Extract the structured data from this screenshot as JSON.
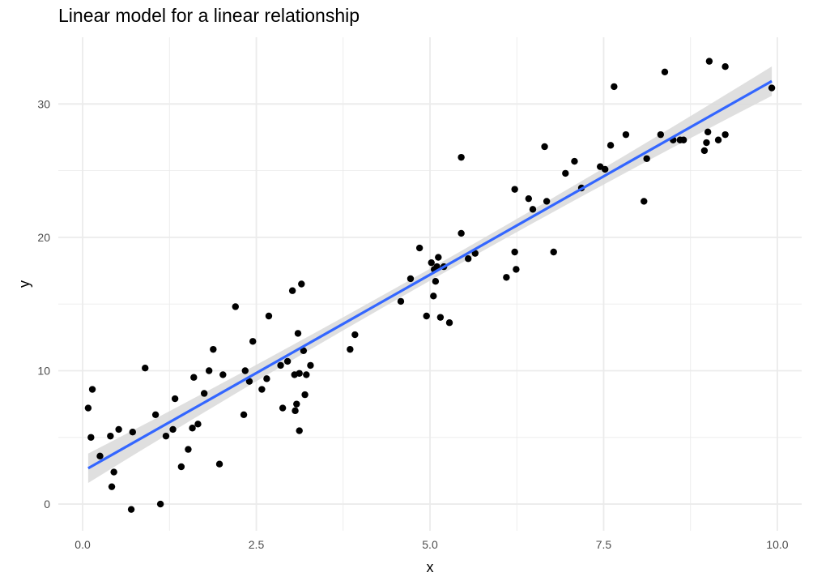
{
  "chart_data": {
    "type": "scatter",
    "title": "Linear model for a linear relationship",
    "xlabel": "x",
    "ylabel": "y",
    "xlim": [
      -0.35,
      10.35
    ],
    "ylim": [
      -2.0,
      35.0
    ],
    "x_ticks": [
      0.0,
      2.5,
      5.0,
      7.5,
      10.0
    ],
    "x_tick_labels": [
      "0.0",
      "2.5",
      "5.0",
      "7.5",
      "10.0"
    ],
    "y_ticks": [
      0,
      10,
      20,
      30
    ],
    "y_tick_labels": [
      "0",
      "10",
      "20",
      "30"
    ],
    "grid": true,
    "legend": "none",
    "colors": {
      "points": "#000000",
      "fit_line": "#3366ff",
      "confidence_band": "#d9d9d9",
      "grid": "#ebebeb"
    },
    "points": [
      [
        0.08,
        7.2
      ],
      [
        0.14,
        8.6
      ],
      [
        0.12,
        5.0
      ],
      [
        0.25,
        3.6
      ],
      [
        0.4,
        5.1
      ],
      [
        0.45,
        2.4
      ],
      [
        0.42,
        1.3
      ],
      [
        0.52,
        5.6
      ],
      [
        0.7,
        -0.4
      ],
      [
        0.72,
        5.4
      ],
      [
        0.9,
        10.2
      ],
      [
        1.05,
        6.7
      ],
      [
        1.12,
        0.0
      ],
      [
        1.2,
        5.1
      ],
      [
        1.3,
        5.6
      ],
      [
        1.33,
        7.9
      ],
      [
        1.42,
        2.8
      ],
      [
        1.52,
        4.1
      ],
      [
        1.58,
        5.7
      ],
      [
        1.6,
        9.5
      ],
      [
        1.66,
        6.0
      ],
      [
        1.75,
        8.3
      ],
      [
        1.82,
        10.0
      ],
      [
        1.88,
        11.6
      ],
      [
        1.97,
        3.0
      ],
      [
        2.02,
        9.7
      ],
      [
        2.2,
        14.8
      ],
      [
        2.32,
        6.7
      ],
      [
        2.34,
        10.0
      ],
      [
        2.4,
        9.2
      ],
      [
        2.45,
        12.2
      ],
      [
        2.58,
        8.6
      ],
      [
        2.65,
        9.4
      ],
      [
        2.68,
        14.1
      ],
      [
        2.85,
        10.4
      ],
      [
        2.88,
        7.2
      ],
      [
        2.95,
        10.7
      ],
      [
        3.02,
        16.0
      ],
      [
        3.05,
        9.7
      ],
      [
        3.06,
        7.0
      ],
      [
        3.08,
        7.5
      ],
      [
        3.1,
        12.8
      ],
      [
        3.12,
        9.8
      ],
      [
        3.12,
        5.5
      ],
      [
        3.15,
        16.5
      ],
      [
        3.18,
        11.5
      ],
      [
        3.2,
        8.2
      ],
      [
        3.22,
        9.7
      ],
      [
        3.28,
        10.4
      ],
      [
        3.85,
        11.6
      ],
      [
        3.92,
        12.7
      ],
      [
        4.58,
        15.2
      ],
      [
        4.72,
        16.9
      ],
      [
        4.85,
        19.2
      ],
      [
        4.95,
        14.1
      ],
      [
        5.02,
        18.1
      ],
      [
        5.05,
        15.6
      ],
      [
        5.06,
        17.6
      ],
      [
        5.08,
        16.7
      ],
      [
        5.1,
        17.8
      ],
      [
        5.12,
        18.5
      ],
      [
        5.15,
        14.0
      ],
      [
        5.2,
        17.8
      ],
      [
        5.28,
        13.6
      ],
      [
        5.45,
        26.0
      ],
      [
        5.45,
        20.3
      ],
      [
        5.55,
        18.4
      ],
      [
        5.65,
        18.8
      ],
      [
        6.1,
        17.0
      ],
      [
        6.22,
        23.6
      ],
      [
        6.22,
        18.9
      ],
      [
        6.24,
        17.6
      ],
      [
        6.42,
        22.9
      ],
      [
        6.48,
        22.1
      ],
      [
        6.65,
        26.8
      ],
      [
        6.68,
        22.7
      ],
      [
        6.78,
        18.9
      ],
      [
        6.95,
        24.8
      ],
      [
        7.08,
        25.7
      ],
      [
        7.18,
        23.7
      ],
      [
        7.45,
        25.3
      ],
      [
        7.52,
        25.1
      ],
      [
        7.6,
        26.9
      ],
      [
        7.65,
        31.3
      ],
      [
        7.82,
        27.7
      ],
      [
        8.08,
        22.7
      ],
      [
        8.12,
        25.9
      ],
      [
        8.32,
        27.7
      ],
      [
        8.38,
        32.4
      ],
      [
        8.5,
        27.3
      ],
      [
        8.6,
        27.3
      ],
      [
        8.65,
        27.3
      ],
      [
        8.95,
        26.5
      ],
      [
        8.98,
        27.1
      ],
      [
        9.0,
        27.9
      ],
      [
        9.02,
        33.2
      ],
      [
        9.15,
        27.3
      ],
      [
        9.25,
        32.8
      ],
      [
        9.25,
        27.7
      ],
      [
        9.92,
        31.2
      ]
    ],
    "fit": {
      "method": "lm",
      "intercept": 2.45,
      "slope": 2.95,
      "x_range": [
        0.08,
        9.92
      ],
      "band_halfwidth_at_ends": 1.1,
      "band_halfwidth_at_center": 0.45
    }
  }
}
